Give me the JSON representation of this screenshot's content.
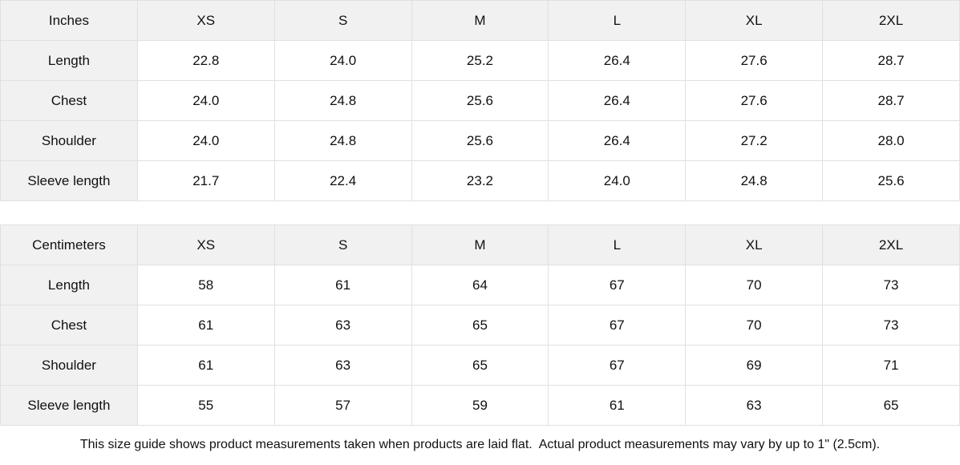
{
  "size_guide": {
    "tables": [
      {
        "unit_label": "Inches",
        "sizes": [
          "XS",
          "S",
          "M",
          "L",
          "XL",
          "2XL"
        ],
        "rows": [
          {
            "label": "Length",
            "values": [
              "22.8",
              "24.0",
              "25.2",
              "26.4",
              "27.6",
              "28.7"
            ]
          },
          {
            "label": "Chest",
            "values": [
              "24.0",
              "24.8",
              "25.6",
              "26.4",
              "27.6",
              "28.7"
            ]
          },
          {
            "label": "Shoulder",
            "values": [
              "24.0",
              "24.8",
              "25.6",
              "26.4",
              "27.2",
              "28.0"
            ]
          },
          {
            "label": "Sleeve length",
            "values": [
              "21.7",
              "22.4",
              "23.2",
              "24.0",
              "24.8",
              "25.6"
            ]
          }
        ]
      },
      {
        "unit_label": "Centimeters",
        "sizes": [
          "XS",
          "S",
          "M",
          "L",
          "XL",
          "2XL"
        ],
        "rows": [
          {
            "label": "Length",
            "values": [
              "58",
              "61",
              "64",
              "67",
              "70",
              "73"
            ]
          },
          {
            "label": "Chest",
            "values": [
              "61",
              "63",
              "65",
              "67",
              "70",
              "73"
            ]
          },
          {
            "label": "Shoulder",
            "values": [
              "61",
              "63",
              "65",
              "67",
              "69",
              "71"
            ]
          },
          {
            "label": "Sleeve length",
            "values": [
              "55",
              "57",
              "59",
              "61",
              "63",
              "65"
            ]
          }
        ]
      }
    ],
    "footer_note": "This size guide shows product measurements taken when products are laid flat.  Actual product measurements may vary by up to 1\" (2.5cm).",
    "colors": {
      "header_bg": "#f1f1f1",
      "border": "#e0e0e0",
      "text": "#111111",
      "cell_bg": "#ffffff"
    }
  }
}
